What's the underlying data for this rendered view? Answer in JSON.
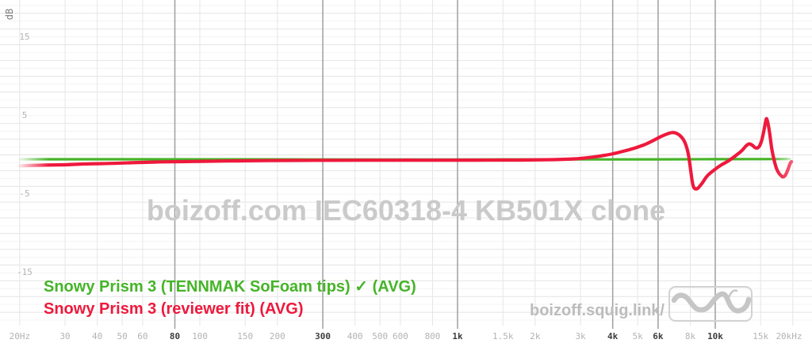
{
  "chart_data": {
    "type": "line",
    "watermark": "boizoff.com IEC60318-4 KB501X clone",
    "x_axis": {
      "scale": "log",
      "min_hz": 20,
      "max_hz": 20000,
      "ticks": [
        {
          "f": 20,
          "label": "20Hz",
          "major": false
        },
        {
          "f": 30,
          "label": "30",
          "major": false
        },
        {
          "f": 40,
          "label": "40",
          "major": false
        },
        {
          "f": 50,
          "label": "50",
          "major": false
        },
        {
          "f": 60,
          "label": "60",
          "major": false
        },
        {
          "f": 80,
          "label": "80",
          "major": true
        },
        {
          "f": 100,
          "label": "100",
          "major": false
        },
        {
          "f": 150,
          "label": "150",
          "major": false
        },
        {
          "f": 200,
          "label": "200",
          "major": false
        },
        {
          "f": 300,
          "label": "300",
          "major": true
        },
        {
          "f": 400,
          "label": "400",
          "major": false
        },
        {
          "f": 500,
          "label": "500",
          "major": false
        },
        {
          "f": 600,
          "label": "600",
          "major": false
        },
        {
          "f": 800,
          "label": "800",
          "major": false
        },
        {
          "f": 1000,
          "label": "1k",
          "major": true
        },
        {
          "f": 1500,
          "label": "1.5k",
          "major": false
        },
        {
          "f": 2000,
          "label": "2k",
          "major": false
        },
        {
          "f": 3000,
          "label": "3k",
          "major": false
        },
        {
          "f": 4000,
          "label": "4k",
          "major": true
        },
        {
          "f": 5000,
          "label": "5k",
          "major": false
        },
        {
          "f": 6000,
          "label": "6k",
          "major": true
        },
        {
          "f": 8000,
          "label": "8k",
          "major": false
        },
        {
          "f": 10000,
          "label": "10k",
          "major": true
        },
        {
          "f": 15000,
          "label": "15k",
          "major": false
        },
        {
          "f": 20000,
          "label": "20kHz",
          "major": false
        }
      ]
    },
    "y_axis": {
      "unit": "dB",
      "grid_step_db": 1,
      "ticks": [
        {
          "db": 15,
          "label": "15"
        },
        {
          "db": 5,
          "label": "5"
        },
        {
          "db": -5,
          "label": "-5"
        },
        {
          "db": -15,
          "label": "-15"
        }
      ]
    },
    "series": [
      {
        "name": "Snowy Prism 3 (TENNMAK SoFoam tips) ✓ (AVG)",
        "color": "#46b428",
        "selected": true,
        "points": [
          [
            20,
            -0.55
          ],
          [
            100,
            -0.56
          ],
          [
            500,
            -0.58
          ],
          [
            1000,
            -0.58
          ],
          [
            3000,
            -0.57
          ],
          [
            6000,
            -0.56
          ],
          [
            10000,
            -0.54
          ],
          [
            15000,
            -0.53
          ],
          [
            19500,
            -0.52
          ]
        ]
      },
      {
        "name": "Snowy Prism 3 (reviewer fit) (AVG)",
        "color": "#ee193c",
        "selected": false,
        "points": [
          [
            20,
            -1.4
          ],
          [
            25,
            -1.3
          ],
          [
            30,
            -1.26
          ],
          [
            35,
            -1.16
          ],
          [
            44,
            -1.09
          ],
          [
            54,
            -1.0
          ],
          [
            71,
            -0.89
          ],
          [
            94,
            -0.84
          ],
          [
            124,
            -0.78
          ],
          [
            164,
            -0.74
          ],
          [
            217,
            -0.7
          ],
          [
            331,
            -0.68
          ],
          [
            504,
            -0.67
          ],
          [
            767,
            -0.67
          ],
          [
            1166,
            -0.66
          ],
          [
            1773,
            -0.65
          ],
          [
            2343,
            -0.6
          ],
          [
            2850,
            -0.5
          ],
          [
            3205,
            -0.35
          ],
          [
            3565,
            -0.15
          ],
          [
            3953,
            0.1
          ],
          [
            4384,
            0.45
          ],
          [
            4862,
            0.86
          ],
          [
            5322,
            1.31
          ],
          [
            5770,
            1.86
          ],
          [
            6187,
            2.37
          ],
          [
            6535,
            2.69
          ],
          [
            6810,
            2.84
          ],
          [
            7097,
            2.72
          ],
          [
            7395,
            2.27
          ],
          [
            7652,
            1.46
          ],
          [
            7866,
            0.05
          ],
          [
            8030,
            -1.96
          ],
          [
            8141,
            -3.37
          ],
          [
            8254,
            -4.13
          ],
          [
            8426,
            -4.33
          ],
          [
            8602,
            -4.18
          ],
          [
            8903,
            -3.57
          ],
          [
            9343,
            -2.62
          ],
          [
            10000,
            -1.81
          ],
          [
            10574,
            -1.26
          ],
          [
            11186,
            -0.81
          ],
          [
            11665,
            -0.4
          ],
          [
            12164,
            0.05
          ],
          [
            12685,
            0.55
          ],
          [
            13132,
            1.11
          ],
          [
            13500,
            1.39
          ],
          [
            13880,
            1.26
          ],
          [
            14268,
            0.93
          ],
          [
            14564,
            0.88
          ],
          [
            14866,
            1.16
          ],
          [
            15174,
            1.96
          ],
          [
            15488,
            3.27
          ],
          [
            15754,
            4.53
          ],
          [
            15915,
            4.38
          ],
          [
            16132,
            3.47
          ],
          [
            16352,
            2.17
          ],
          [
            16575,
            0.76
          ],
          [
            16914,
            -0.65
          ],
          [
            17260,
            -1.66
          ],
          [
            17613,
            -2.27
          ],
          [
            17973,
            -2.62
          ],
          [
            18340,
            -2.8
          ],
          [
            18715,
            -2.57
          ],
          [
            19098,
            -1.96
          ],
          [
            19488,
            -1.16
          ],
          [
            19752,
            -0.86
          ]
        ]
      }
    ],
    "legend_position": "bottom-left"
  },
  "branding": {
    "site_text": "boizoff.squig.link/",
    "logo": "squiggle-wave-logo"
  }
}
